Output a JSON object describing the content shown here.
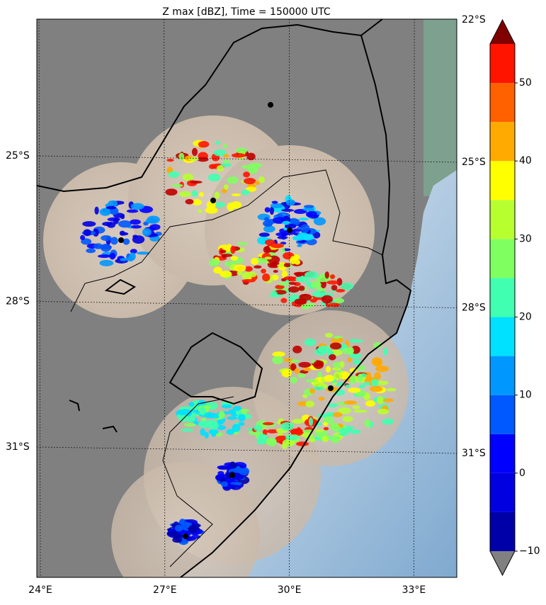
{
  "title": "Z max [dBZ], Time = 150000 UTC",
  "map": {
    "lat_ticks": [
      {
        "value": -22,
        "label": "22°S"
      },
      {
        "value": -25,
        "label": "25°S"
      },
      {
        "value": -28,
        "label": "28°S"
      },
      {
        "value": -31,
        "label": "31°S"
      }
    ],
    "lon_ticks": [
      {
        "value": 24,
        "label": "24°E"
      },
      {
        "value": 27,
        "label": "27°E"
      },
      {
        "value": 30,
        "label": "30°E"
      },
      {
        "value": 33,
        "label": "33°E"
      }
    ]
  },
  "colorbar": {
    "levels": [
      -10,
      -5,
      0,
      5,
      10,
      15,
      20,
      25,
      30,
      35,
      40,
      45,
      50,
      55
    ],
    "colors": [
      "#0000a8",
      "#0000e0",
      "#0000ff",
      "#0058ff",
      "#0098ff",
      "#00e0ff",
      "#40ffb0",
      "#80ff60",
      "#b8ff30",
      "#ffff00",
      "#ffaa00",
      "#ff6000",
      "#ff1400",
      "#c00000"
    ],
    "under_color": "#808080",
    "over_color": "#800000",
    "ticks": [
      {
        "value": -10,
        "label": "−10"
      },
      0,
      10,
      20,
      30,
      40,
      50
    ]
  }
}
